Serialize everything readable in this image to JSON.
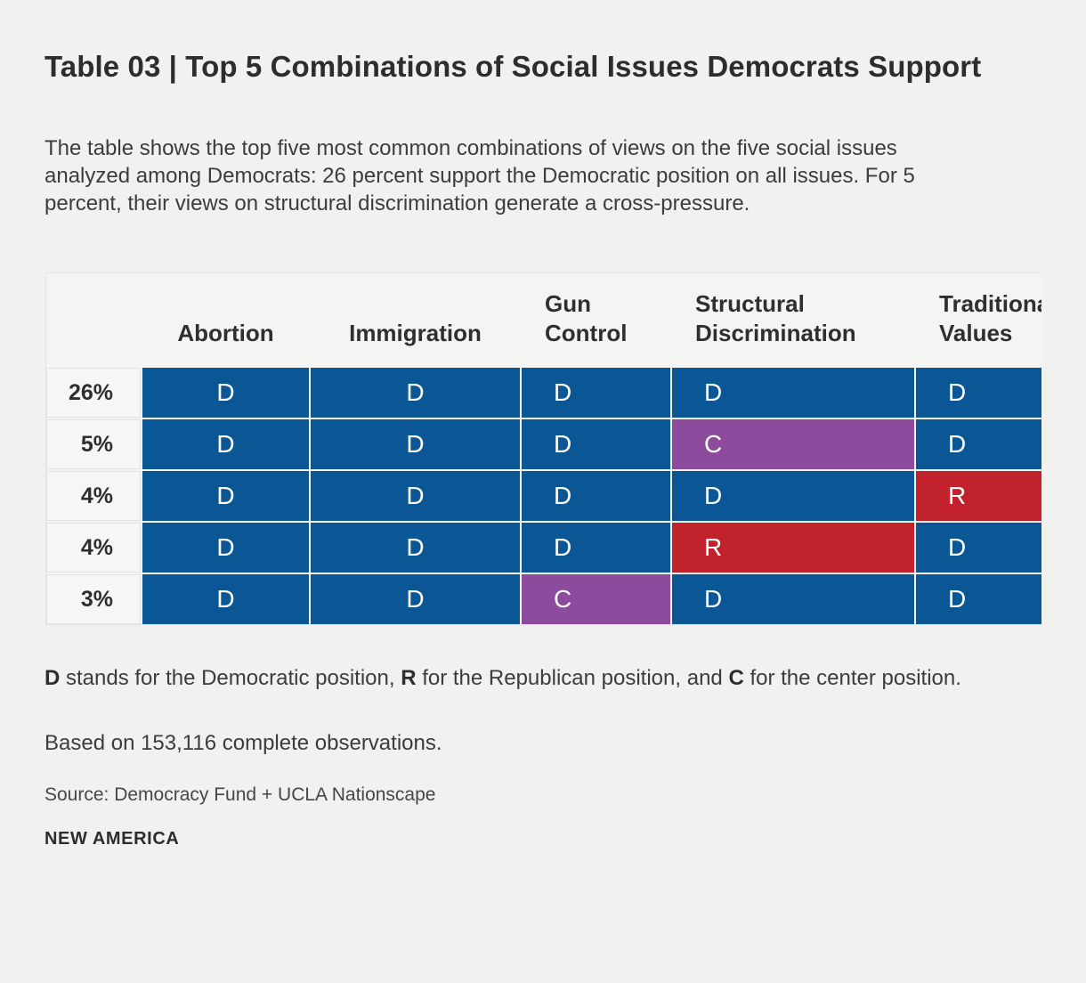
{
  "title": "Table 03 | Top 5 Combinations of Social Issues Democrats Support",
  "description": "The table shows the top five most common combinations of views on the five social issues analyzed among Democrats: 26 percent support the Democratic position on all issues. For 5 percent, their views on structural discrimination generate a cross-pressure.",
  "chart_data": {
    "type": "table",
    "title": "Table 03 | Top 5 Combinations of Social Issues Democrats Support",
    "columns": [
      "Abortion",
      "Immigration",
      "Gun Control",
      "Structural Discrimination",
      "Traditional Values"
    ],
    "rows": [
      {
        "share": "26%",
        "values": [
          "D",
          "D",
          "D",
          "D",
          "D"
        ]
      },
      {
        "share": "5%",
        "values": [
          "D",
          "D",
          "D",
          "C",
          "D"
        ]
      },
      {
        "share": "4%",
        "values": [
          "D",
          "D",
          "D",
          "D",
          "R"
        ]
      },
      {
        "share": "4%",
        "values": [
          "D",
          "D",
          "D",
          "R",
          "D"
        ]
      },
      {
        "share": "3%",
        "values": [
          "D",
          "D",
          "C",
          "D",
          "D"
        ]
      }
    ],
    "cell_colors": {
      "D": "#0B5796",
      "R": "#C2222B",
      "C": "#8D4B9E"
    },
    "cell_text_color": "#FFFFFF",
    "legend": "D stands for the Democratic position, R for the Republican position, and C for the center position."
  },
  "legend_segments": [
    {
      "text": "D",
      "bold": true
    },
    {
      "text": " stands for the Democratic position, ",
      "bold": false
    },
    {
      "text": "R",
      "bold": true
    },
    {
      "text": " for the Republican position, and ",
      "bold": false
    },
    {
      "text": "C",
      "bold": true
    },
    {
      "text": " for the center position.",
      "bold": false
    }
  ],
  "notes": {
    "based_on": "Based on 153,116 complete observations.",
    "source": "Source: Democracy Fund + UCLA Nationscape",
    "brand": "NEW AMERICA"
  }
}
